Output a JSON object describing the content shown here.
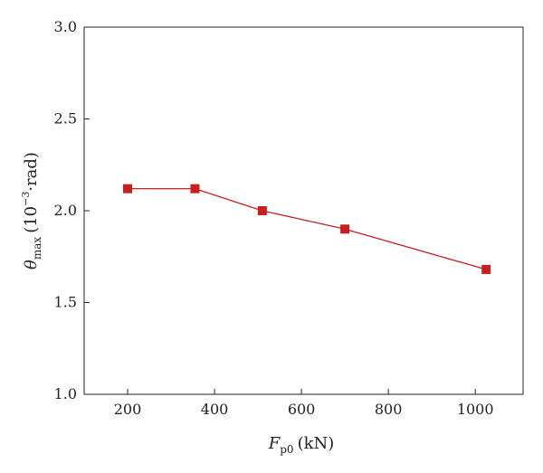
{
  "chart_data": {
    "type": "line",
    "title": "",
    "xlabel": {
      "symbol": "F",
      "subscript": "p0",
      "unit": "(kN)"
    },
    "ylabel": {
      "symbol": "θ",
      "subscript": "max",
      "unit_open": "(10",
      "unit_exp": "−3",
      "unit_rest": "·rad)"
    },
    "xlim": [
      100,
      1110
    ],
    "ylim": [
      1.0,
      3.0
    ],
    "x_ticks": [
      200,
      400,
      600,
      800,
      1000
    ],
    "y_ticks": [
      1.0,
      1.5,
      2.0,
      2.5,
      3.0
    ],
    "x_tick_labels": [
      "200",
      "400",
      "600",
      "800",
      "1000"
    ],
    "y_tick_labels": [
      "1.0",
      "1.5",
      "2.0",
      "2.5",
      "3.0"
    ],
    "grid": false,
    "series": [
      {
        "color": "#c8201e",
        "marker": "square",
        "x": [
          200,
          355,
          510,
          700,
          1025
        ],
        "y": [
          2.12,
          2.12,
          2.0,
          1.9,
          1.68
        ]
      }
    ]
  }
}
